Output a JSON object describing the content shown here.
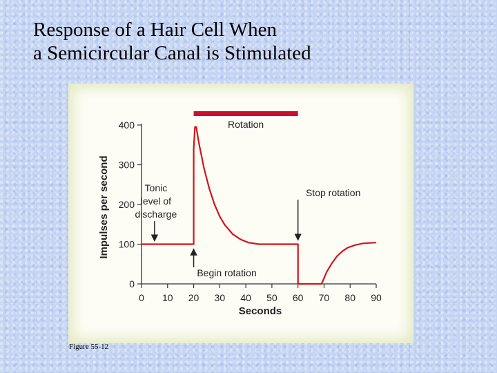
{
  "title_line1": "Response of a Hair Cell When",
  "title_line2": "a Semicircular Canal is Stimulated",
  "caption": "Figure 55-12",
  "chart_data": {
    "type": "line",
    "title": "",
    "xlabel": "Seconds",
    "ylabel": "Impulses per second",
    "xlim": [
      0,
      90
    ],
    "ylim": [
      0,
      400
    ],
    "x_ticks": [
      0,
      10,
      20,
      30,
      40,
      50,
      60,
      70,
      80,
      90
    ],
    "y_ticks": [
      0,
      100,
      200,
      300,
      400
    ],
    "grid": false,
    "line_color": "#d0151c",
    "series": [
      {
        "x": [
          0,
          20,
          20,
          20.5,
          21,
          22,
          24,
          26,
          28,
          30,
          32,
          35,
          38,
          41,
          45,
          50,
          55,
          60,
          60,
          60,
          69,
          69.5,
          71,
          73,
          75,
          77,
          79,
          82,
          85,
          90
        ],
        "y": [
          100,
          100,
          340,
          395,
          395,
          355,
          290,
          240,
          200,
          170,
          148,
          125,
          112,
          104,
          100,
          100,
          100,
          100,
          100,
          0,
          0,
          7,
          30,
          52,
          70,
          82,
          91,
          98,
          102,
          104
        ]
      }
    ],
    "rotation_bar": {
      "label": "Rotation",
      "x_start": 20,
      "x_end": 60,
      "color": "#c8102e"
    },
    "annotations": [
      {
        "lines": [
          "Tonic",
          "level of",
          "discharge"
        ],
        "arrow_x": 5,
        "arrow_y_from": 158,
        "arrow_y_to": 108
      },
      {
        "lines": [
          "Begin rotation"
        ],
        "arrow_x": 20,
        "arrow_y_from": 42,
        "arrow_y_to": 88
      },
      {
        "lines": [
          "Stop rotation"
        ],
        "arrow_x": 60,
        "arrow_y_from": 212,
        "arrow_y_to": 110
      }
    ]
  }
}
